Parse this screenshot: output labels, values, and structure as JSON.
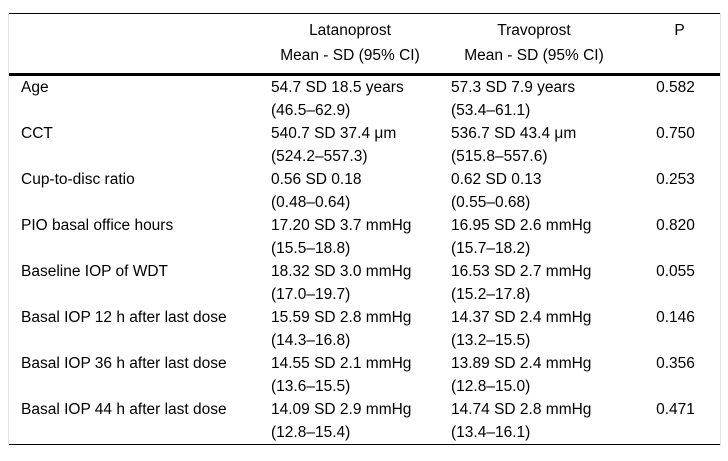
{
  "table": {
    "header": {
      "drug1": "Latanoprost",
      "drug2": "Travoprost",
      "p": "P",
      "subheader": "Mean - SD (95% CI)"
    },
    "rows": [
      {
        "label": "Age",
        "lat_val": "54.7 SD 18.5 years",
        "lat_ci": "(46.5–62.9)",
        "trav_val": "57.3 SD 7.9 years",
        "trav_ci": "(53.4–61.1)",
        "p": "0.582"
      },
      {
        "label": "CCT",
        "lat_val": "540.7 SD 37.4 μm",
        "lat_ci": "(524.2–557.3)",
        "trav_val": "536.7 SD 43.4 μm",
        "trav_ci": "(515.8–557.6)",
        "p": "0.750"
      },
      {
        "label": "Cup-to-disc ratio",
        "lat_val": "0.56 SD 0.18",
        "lat_ci": "(0.48–0.64)",
        "trav_val": "0.62 SD 0.13",
        "trav_ci": "(0.55–0.68)",
        "p": "0.253"
      },
      {
        "label": "PIO basal office hours",
        "lat_val": "17.20 SD 3.7 mmHg",
        "lat_ci": "(15.5–18.8)",
        "trav_val": "16.95 SD 2.6 mmHg",
        "trav_ci": "(15.7–18.2)",
        "p": "0.820"
      },
      {
        "label": "Baseline IOP of WDT",
        "lat_val": "18.32 SD 3.0 mmHg",
        "lat_ci": "(17.0–19.7)",
        "trav_val": "16.53 SD 2.7 mmHg",
        "trav_ci": "(15.2–17.8)",
        "p": "0.055"
      },
      {
        "label": "Basal IOP 12 h after last dose",
        "lat_val": "15.59 SD 2.8 mmHg",
        "lat_ci": "(14.3–16.8)",
        "trav_val": "14.37 SD 2.4 mmHg",
        "trav_ci": "(13.2–15.5)",
        "p": "0.146"
      },
      {
        "label": "Basal IOP 36 h after last dose",
        "lat_val": "14.55 SD 2.1 mmHg",
        "lat_ci": "(13.6–15.5)",
        "trav_val": "13.89 SD 2.4 mmHg",
        "trav_ci": "(12.8–15.0)",
        "p": "0.356"
      },
      {
        "label": "Basal IOP 44 h after last dose",
        "lat_val": "14.09 SD 2.9 mmHg",
        "lat_ci": "(12.8–15.4)",
        "trav_val": "14.74 SD 2.8 mmHg",
        "trav_ci": "(13.4–16.1)",
        "p": "0.471"
      }
    ]
  }
}
